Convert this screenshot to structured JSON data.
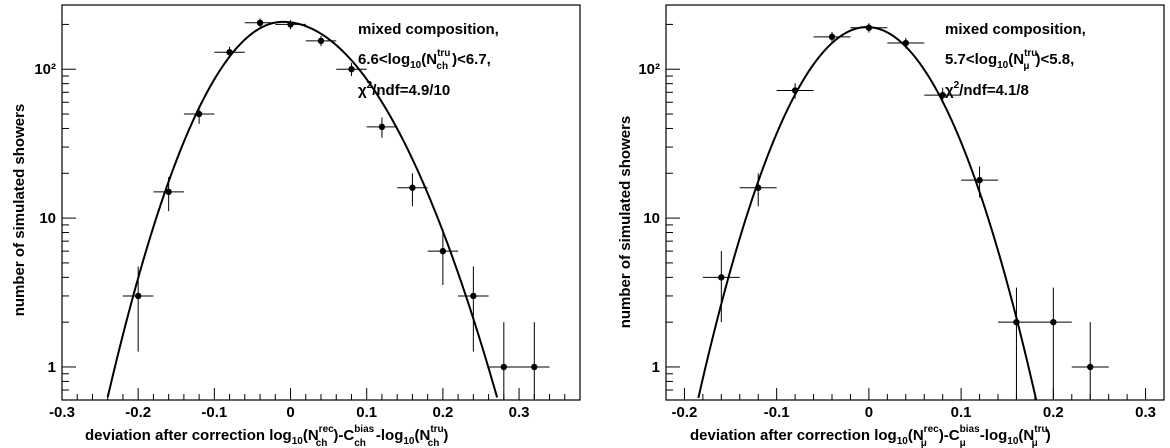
{
  "chart_data": [
    {
      "type": "scatter",
      "log_y": true,
      "xlim": [
        -0.3,
        0.38
      ],
      "ylim": [
        0.6,
        270
      ],
      "xticks": [
        "-0.3",
        "-0.2",
        "-0.1",
        "0",
        "0.1",
        "0.2",
        "0.3"
      ],
      "yticks": [
        "1",
        "10",
        "10²"
      ],
      "ylabel": "number of simulated showers",
      "xlabel": {
        "main": "deviation after correction log",
        "s1": "10",
        "a": "(N",
        "sup1": "rec",
        "sub1": "ch",
        "b": ")-C",
        "sup2": "bias",
        "sub2": "ch",
        "c": "-log",
        "s2": "10",
        "d": "(N",
        "sup3": "tru",
        "sub3": "ch",
        "e": ")"
      },
      "annotation": {
        "line1": "mixed composition,",
        "line2": {
          "a": "6.6<log",
          "s": "10",
          "b": "(N",
          "sup": "tru",
          "sub": "ch",
          "c": ")<6.7,"
        },
        "line3": {
          "a": "χ",
          "sup": "2",
          "b": "/ndf=4.9/10"
        }
      },
      "series": [
        {
          "x": [
            -0.2,
            -0.16,
            -0.12,
            -0.08,
            -0.04,
            0.0,
            0.04,
            0.08,
            0.12,
            0.16,
            0.2,
            0.24,
            0.28,
            0.32
          ],
          "y": [
            3,
            15,
            50,
            130,
            205,
            200,
            155,
            100,
            41,
            16,
            6,
            3,
            1,
            1
          ],
          "xerr": 0.02
        }
      ],
      "fit": {
        "amplitude": 208,
        "mean": -0.01,
        "sigma_left": 0.0675,
        "sigma_right": 0.0825
      }
    },
    {
      "type": "scatter",
      "log_y": true,
      "xlim": [
        -0.22,
        0.32
      ],
      "ylim": [
        0.6,
        270
      ],
      "xticks": [
        "-0.2",
        "-0.1",
        "0",
        "0.1",
        "0.2",
        "0.3"
      ],
      "yticks": [
        "1",
        "10",
        "10²"
      ],
      "ylabel": "number of simulated showers",
      "xlabel": {
        "main": "deviation after correction log",
        "s1": "10",
        "a": "(N",
        "sup1": "rec",
        "sub1": "μ",
        "b": ")-C",
        "sup2": "bias",
        "sub2": "μ",
        "c": "-log",
        "s2": "10",
        "d": "(N",
        "sup3": "tru",
        "sub3": "μ",
        "e": ")"
      },
      "annotation": {
        "line1": "mixed composition,",
        "line2": {
          "a": "5.7<log",
          "s": "10",
          "b": "(N",
          "sup": "tru",
          "sub": "μ",
          "c": ")<5.8,"
        },
        "line3": {
          "a": "χ",
          "sup": "2",
          "b": "/ndf=4.1/8"
        }
      },
      "series": [
        {
          "x": [
            -0.16,
            -0.12,
            -0.08,
            -0.04,
            0.0,
            0.04,
            0.08,
            0.12,
            0.16,
            0.2,
            0.24
          ],
          "y": [
            4,
            16,
            72,
            165,
            190,
            150,
            67,
            18,
            2,
            2,
            1
          ],
          "xerr": 0.02
        }
      ],
      "fit": {
        "amplitude": 192,
        "mean": -0.002,
        "sigma_left": 0.054,
        "sigma_right": 0.054
      }
    }
  ]
}
